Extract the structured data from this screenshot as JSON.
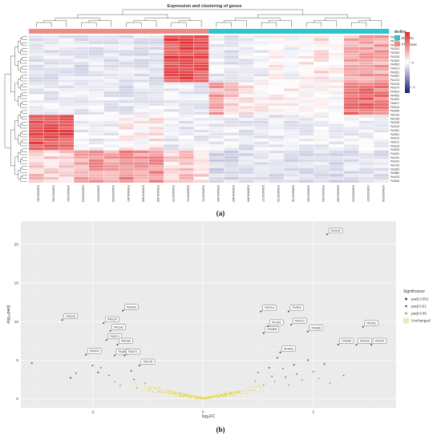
{
  "chart_data": [
    {
      "type": "heatmap",
      "title": "Expression and clustering of genes",
      "panel_label": "(a)",
      "annotation": {
        "title": "Biofilm",
        "groups": [
          {
            "name": "Biofilm",
            "color": "#2ec4cc"
          },
          {
            "name": "Planktonic",
            "color": "#f08a84"
          }
        ]
      },
      "colorbar": {
        "ticks": [
          2,
          0,
          -2
        ],
        "high": "#e0282b",
        "mid": "#ffffff",
        "low": "#141a7a"
      },
      "columns": [
        "GSM4041280",
        "GSM4041282",
        "GSM4041281",
        "GSM4053054",
        "GSM4053050",
        "GSM4053056",
        "GSM4041487",
        "GSM4041486",
        "GSM4041488",
        "GSM8033729",
        "GSM8033730",
        "GSM8033731",
        "GSM4041489",
        "GSM4041485",
        "GSM4041484",
        "GSM8033727",
        "GSM8033726",
        "GSM8033728",
        "GSM4041283",
        "GSM4041284",
        "GSM4041285",
        "GSM4053055",
        "GSM4053057",
        "GSM4053058"
      ],
      "column_groups": [
        "Planktonic",
        "Planktonic",
        "Planktonic",
        "Planktonic",
        "Planktonic",
        "Planktonic",
        "Planktonic",
        "Planktonic",
        "Planktonic",
        "Planktonic",
        "Planktonic",
        "Planktonic",
        "Biofilm",
        "Biofilm",
        "Biofilm",
        "Biofilm",
        "Biofilm",
        "Biofilm",
        "Biofilm",
        "Biofilm",
        "Biofilm",
        "Biofilm",
        "Biofilm",
        "Biofilm"
      ],
      "row_labels_visible": [
        "PA0106",
        "PA1555",
        "PA2016",
        "PA2023",
        "PA2383",
        "PA3235",
        "PA4306",
        "PA4563",
        "PA5213",
        "PA0281",
        "PA0962",
        "PA1123",
        "PA2146",
        "PA3274",
        "PA3923",
        "PA4463",
        "PA4610",
        "PA5427",
        "PA0105",
        "PA0459",
        "PA1108",
        "PA1789",
        "PA2189",
        "PA2415",
        "PA3281",
        "PA3532",
        "PA4132",
        "PA5170",
        "PA0108",
        "PA0523",
        "PA0810",
        "PA1180",
        "PA2190",
        "PA2750",
        "PA3309",
        "PA3880",
        "PA4578",
        "PA5096"
      ],
      "blocks": [
        {
          "rows": 16,
          "values": [
            -0.5,
            -0.5,
            -0.5,
            -0.6,
            -0.5,
            -0.6,
            -0.5,
            -0.6,
            -0.5,
            2.0,
            2.2,
            2.0,
            -0.4,
            -0.5,
            -0.3,
            -0.3,
            0.2,
            -0.2,
            0.2,
            0.3,
            0.1,
            0.9,
            1.0,
            1.0
          ]
        },
        {
          "rows": 11,
          "values": [
            -0.4,
            -0.4,
            -0.4,
            -0.4,
            -0.4,
            -0.4,
            -0.5,
            -0.4,
            -0.4,
            -0.3,
            -0.3,
            -0.4,
            1.0,
            0.6,
            0.3,
            0.1,
            0.2,
            0.1,
            0.0,
            0.1,
            0.0,
            1.6,
            1.7,
            1.5
          ]
        },
        {
          "rows": 12,
          "values": [
            2.0,
            2.0,
            1.9,
            -0.3,
            -0.3,
            -0.3,
            0.2,
            0.1,
            0.3,
            -0.4,
            -0.4,
            -0.4,
            -0.5,
            -0.4,
            -0.5,
            -0.4,
            -0.4,
            -0.4,
            -0.3,
            -0.3,
            -0.3,
            -0.3,
            -0.3,
            -0.3
          ]
        },
        {
          "rows": 11,
          "values": [
            0.6,
            0.5,
            0.6,
            1.0,
            1.2,
            1.0,
            1.4,
            1.2,
            1.3,
            0.5,
            0.6,
            0.4,
            -0.8,
            -0.8,
            -0.7,
            -0.6,
            -0.6,
            -0.6,
            -0.7,
            -0.6,
            -0.7,
            -0.6,
            -0.5,
            -0.6
          ]
        }
      ]
    },
    {
      "type": "scatter",
      "subtype": "volcano",
      "panel_label": "(b)",
      "xlabel": "log₂FC",
      "ylabel": "-log₁₀padj",
      "xlim": [
        -3.3,
        3.5
      ],
      "ylim": [
        -1.2,
        23
      ],
      "xticks": [
        -2,
        0,
        2
      ],
      "yticks": [
        0,
        5,
        10,
        15,
        20
      ],
      "legend": {
        "title": "Significance",
        "position": "right",
        "entries": [
          {
            "name": "padj 0.001",
            "color": "#333333"
          },
          {
            "name": "padj 0.01",
            "color": "#6b6b6b"
          },
          {
            "name": "padj 0.05",
            "color": "#9a9a9a"
          },
          {
            "name": "Unchanged",
            "color": "#e8d84a"
          }
        ]
      },
      "labeled_points": [
        {
          "label": "PA0106",
          "x": 2.25,
          "y": 21.3
        },
        {
          "label": "PA3135",
          "x": -2.55,
          "y": 10.2
        },
        {
          "label": "PA0234",
          "x": -1.8,
          "y": 9.8
        },
        {
          "label": "PA4264",
          "x": -1.45,
          "y": 11.4
        },
        {
          "label": "PA1242",
          "x": -1.68,
          "y": 8.8
        },
        {
          "label": "PA3971",
          "x": -1.75,
          "y": 7.6
        },
        {
          "label": "PA0186",
          "x": -1.55,
          "y": 7.0
        },
        {
          "label": "PA4848",
          "x": -1.6,
          "y": 5.6
        },
        {
          "label": "PA0640",
          "x": -2.12,
          "y": 5.7
        },
        {
          "label": "PA0971",
          "x": -1.42,
          "y": 5.6
        },
        {
          "label": "PA1178",
          "x": -1.15,
          "y": 4.3
        },
        {
          "label": "PA2014",
          "x": 1.05,
          "y": 11.3
        },
        {
          "label": "PA3904",
          "x": 1.55,
          "y": 11.3
        },
        {
          "label": "PA2013",
          "x": 1.6,
          "y": 9.6
        },
        {
          "label": "PA1891",
          "x": 1.18,
          "y": 9.4
        },
        {
          "label": "PA0898",
          "x": 1.1,
          "y": 8.5
        },
        {
          "label": "PA0088",
          "x": 1.9,
          "y": 8.7
        },
        {
          "label": "PA4953",
          "x": 1.4,
          "y": 6.0
        },
        {
          "label": "PA3036",
          "x": 2.45,
          "y": 7.0
        },
        {
          "label": "PA2036",
          "x": 2.78,
          "y": 7.0
        },
        {
          "label": "PA3376",
          "x": 3.05,
          "y": 7.0
        },
        {
          "label": "PA0281",
          "x": 2.9,
          "y": 9.3
        }
      ],
      "other_points": [
        {
          "x": -3.1,
          "y": 4.6,
          "sig": "padj 0.001"
        },
        {
          "x": -2.4,
          "y": 2.7,
          "sig": "padj 0.001"
        },
        {
          "x": -2.3,
          "y": 3.3,
          "sig": "padj 0.01"
        },
        {
          "x": -2.0,
          "y": 4.3,
          "sig": "padj 0.001"
        },
        {
          "x": -1.9,
          "y": 3.4,
          "sig": "padj 0.001"
        },
        {
          "x": -1.85,
          "y": 4.0,
          "sig": "padj 0.01"
        },
        {
          "x": -1.7,
          "y": 3.0,
          "sig": "padj 0.01"
        },
        {
          "x": -1.6,
          "y": 2.2,
          "sig": "padj 0.05"
        },
        {
          "x": -1.5,
          "y": 1.7,
          "sig": "padj 0.05"
        },
        {
          "x": -1.3,
          "y": 3.6,
          "sig": "padj 0.001"
        },
        {
          "x": -1.25,
          "y": 2.5,
          "sig": "padj 0.01"
        },
        {
          "x": -1.2,
          "y": 1.4,
          "sig": "padj 0.05"
        },
        {
          "x": -1.05,
          "y": 2.0,
          "sig": "padj 0.05"
        },
        {
          "x": 0.95,
          "y": 2.3,
          "sig": "padj 0.05"
        },
        {
          "x": 1.0,
          "y": 3.4,
          "sig": "padj 0.01"
        },
        {
          "x": 1.1,
          "y": 1.8,
          "sig": "padj 0.05"
        },
        {
          "x": 1.2,
          "y": 4.0,
          "sig": "padj 0.001"
        },
        {
          "x": 1.25,
          "y": 2.9,
          "sig": "padj 0.01"
        },
        {
          "x": 1.3,
          "y": 2.2,
          "sig": "padj 0.05"
        },
        {
          "x": 1.35,
          "y": 5.3,
          "sig": "padj 0.001"
        },
        {
          "x": 1.45,
          "y": 3.9,
          "sig": "padj 0.01"
        },
        {
          "x": 1.5,
          "y": 2.8,
          "sig": "padj 0.01"
        },
        {
          "x": 1.55,
          "y": 1.8,
          "sig": "padj 0.05"
        },
        {
          "x": 1.65,
          "y": 4.4,
          "sig": "padj 0.001"
        },
        {
          "x": 1.7,
          "y": 3.2,
          "sig": "padj 0.01"
        },
        {
          "x": 1.8,
          "y": 2.4,
          "sig": "padj 0.05"
        },
        {
          "x": 1.9,
          "y": 5.0,
          "sig": "padj 0.001"
        },
        {
          "x": 2.0,
          "y": 3.5,
          "sig": "padj 0.01"
        },
        {
          "x": 2.1,
          "y": 2.6,
          "sig": "padj 0.05"
        },
        {
          "x": 2.2,
          "y": 4.5,
          "sig": "padj 0.001"
        },
        {
          "x": 2.3,
          "y": 2.0,
          "sig": "padj 0.05"
        },
        {
          "x": 2.55,
          "y": 3.0,
          "sig": "padj 0.01"
        }
      ]
    }
  ]
}
